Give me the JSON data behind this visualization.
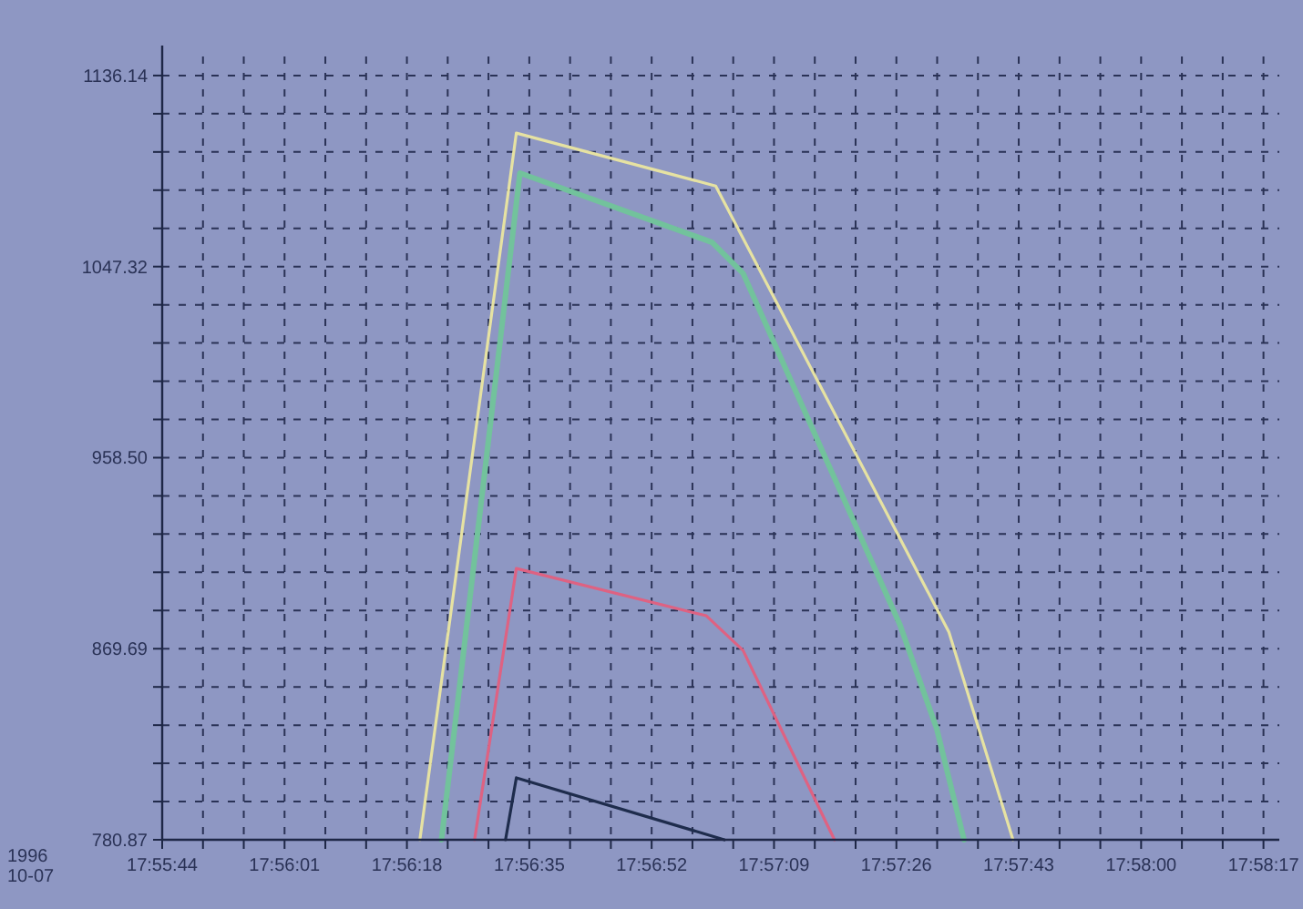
{
  "chart_data": {
    "type": "line",
    "annotations": [
      "1996\n10-07"
    ],
    "xlim": [
      17.928889,
      17.972
    ],
    "ylim": [
      780.87,
      1145
    ],
    "xticks": [
      {
        "value": 17.928889,
        "label": "17:55:44"
      },
      {
        "value": 17.930463,
        "label": null
      },
      {
        "value": 17.932037,
        "label": null
      },
      {
        "value": 17.933611,
        "label": "17:56:01"
      },
      {
        "value": 17.935185,
        "label": null
      },
      {
        "value": 17.936759,
        "label": null
      },
      {
        "value": 17.938333,
        "label": "17:56:18"
      },
      {
        "value": 17.939907,
        "label": null
      },
      {
        "value": 17.941481,
        "label": null
      },
      {
        "value": 17.943056,
        "label": "17:56:35"
      },
      {
        "value": 17.94463,
        "label": null
      },
      {
        "value": 17.946204,
        "label": null
      },
      {
        "value": 17.947778,
        "label": "17:56:52"
      },
      {
        "value": 17.949352,
        "label": null
      },
      {
        "value": 17.950926,
        "label": null
      },
      {
        "value": 17.9525,
        "label": "17:57:09"
      },
      {
        "value": 17.954074,
        "label": null
      },
      {
        "value": 17.955648,
        "label": null
      },
      {
        "value": 17.957222,
        "label": "17:57:26"
      },
      {
        "value": 17.958796,
        "label": null
      },
      {
        "value": 17.96037,
        "label": null
      },
      {
        "value": 17.961944,
        "label": "17:57:43"
      },
      {
        "value": 17.963519,
        "label": null
      },
      {
        "value": 17.965093,
        "label": null
      },
      {
        "value": 17.966667,
        "label": "17:58:00"
      },
      {
        "value": 17.968241,
        "label": null
      },
      {
        "value": 17.969815,
        "label": null
      },
      {
        "value": 17.971389,
        "label": "17:58:17"
      }
    ],
    "yticks": [
      780.87,
      {
        "value": 798.63,
        "label": null
      },
      {
        "value": 816.4,
        "label": null
      },
      {
        "value": 834.16,
        "label": null
      },
      {
        "value": 851.92,
        "label": null
      },
      869.69,
      {
        "value": 887.45,
        "label": null
      },
      {
        "value": 905.22,
        "label": null
      },
      {
        "value": 922.98,
        "label": null
      },
      {
        "value": 940.74,
        "label": null
      },
      {
        "value": 958.5,
        "label": "958.50"
      },
      {
        "value": 976.27,
        "label": null
      },
      {
        "value": 994.03,
        "label": null
      },
      {
        "value": 1011.8,
        "label": null
      },
      {
        "value": 1029.56,
        "label": null
      },
      1047.32,
      {
        "value": 1065.09,
        "label": null
      },
      {
        "value": 1082.85,
        "label": null
      },
      {
        "value": 1100.61,
        "label": null
      },
      {
        "value": 1118.38,
        "label": null
      },
      1136.14
    ],
    "grid": true,
    "line_style": "solid",
    "series": [
      {
        "color": "#e6e2a2",
        "x": [
          17.938833,
          17.942556,
          17.95025,
          17.95925,
          17.961722
        ],
        "values": [
          780.87,
          1109.4,
          1084.8,
          877.4,
          780.87
        ]
      },
      {
        "color": "#72c29c",
        "x": [
          17.939667,
          17.942694,
          17.950111,
          17.951306,
          17.957361,
          17.958778,
          17.959833
        ],
        "values": [
          780.87,
          1090.8,
          1058.6,
          1044.2,
          880.8,
          832.5,
          780.87
        ]
      },
      {
        "color": "#de6282",
        "x": [
          17.940944,
          17.942556,
          17.949889,
          17.951306,
          17.954833
        ],
        "values": [
          780.87,
          907.0,
          885.0,
          868.9,
          780.87
        ]
      },
      {
        "color": "#1e2c4c",
        "x": [
          17.942139,
          17.942556,
          17.950583
        ],
        "values": [
          780.87,
          809.7,
          780.87
        ]
      }
    ]
  }
}
